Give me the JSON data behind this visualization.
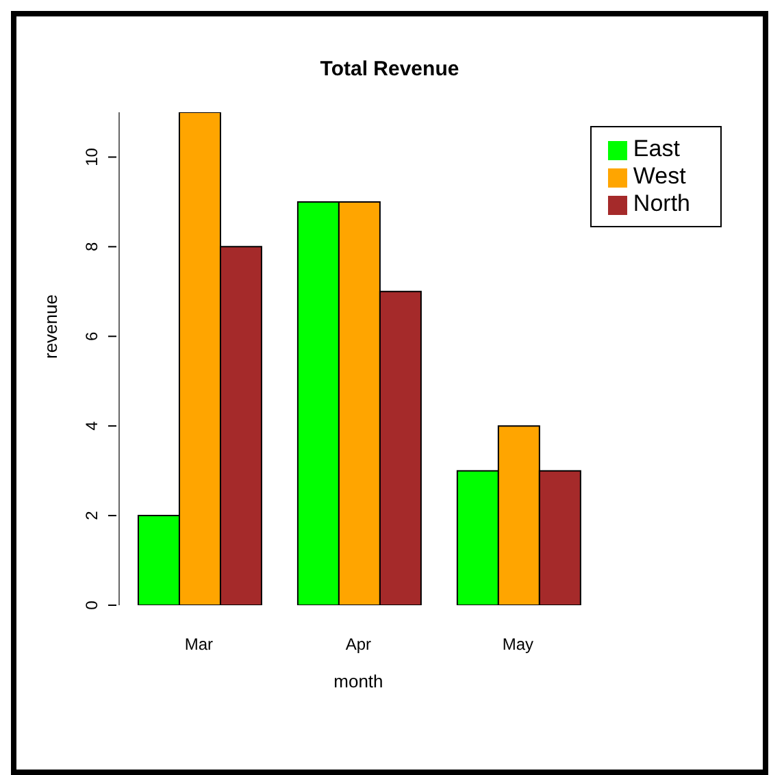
{
  "chart_data": {
    "type": "bar",
    "title": "Total Revenue",
    "xlabel": "month",
    "ylabel": "revenue",
    "categories": [
      "Mar",
      "Apr",
      "May"
    ],
    "series": [
      {
        "name": "East",
        "color": "#00ff00",
        "values": [
          2,
          9,
          3
        ]
      },
      {
        "name": "West",
        "color": "#ffa500",
        "values": [
          11,
          9,
          4
        ]
      },
      {
        "name": "North",
        "color": "#a52a2a",
        "values": [
          8,
          7,
          3
        ]
      }
    ],
    "ylim": [
      0,
      11
    ],
    "yticks": [
      0,
      2,
      4,
      6,
      8,
      10
    ],
    "grid": false,
    "legend": "top right"
  }
}
